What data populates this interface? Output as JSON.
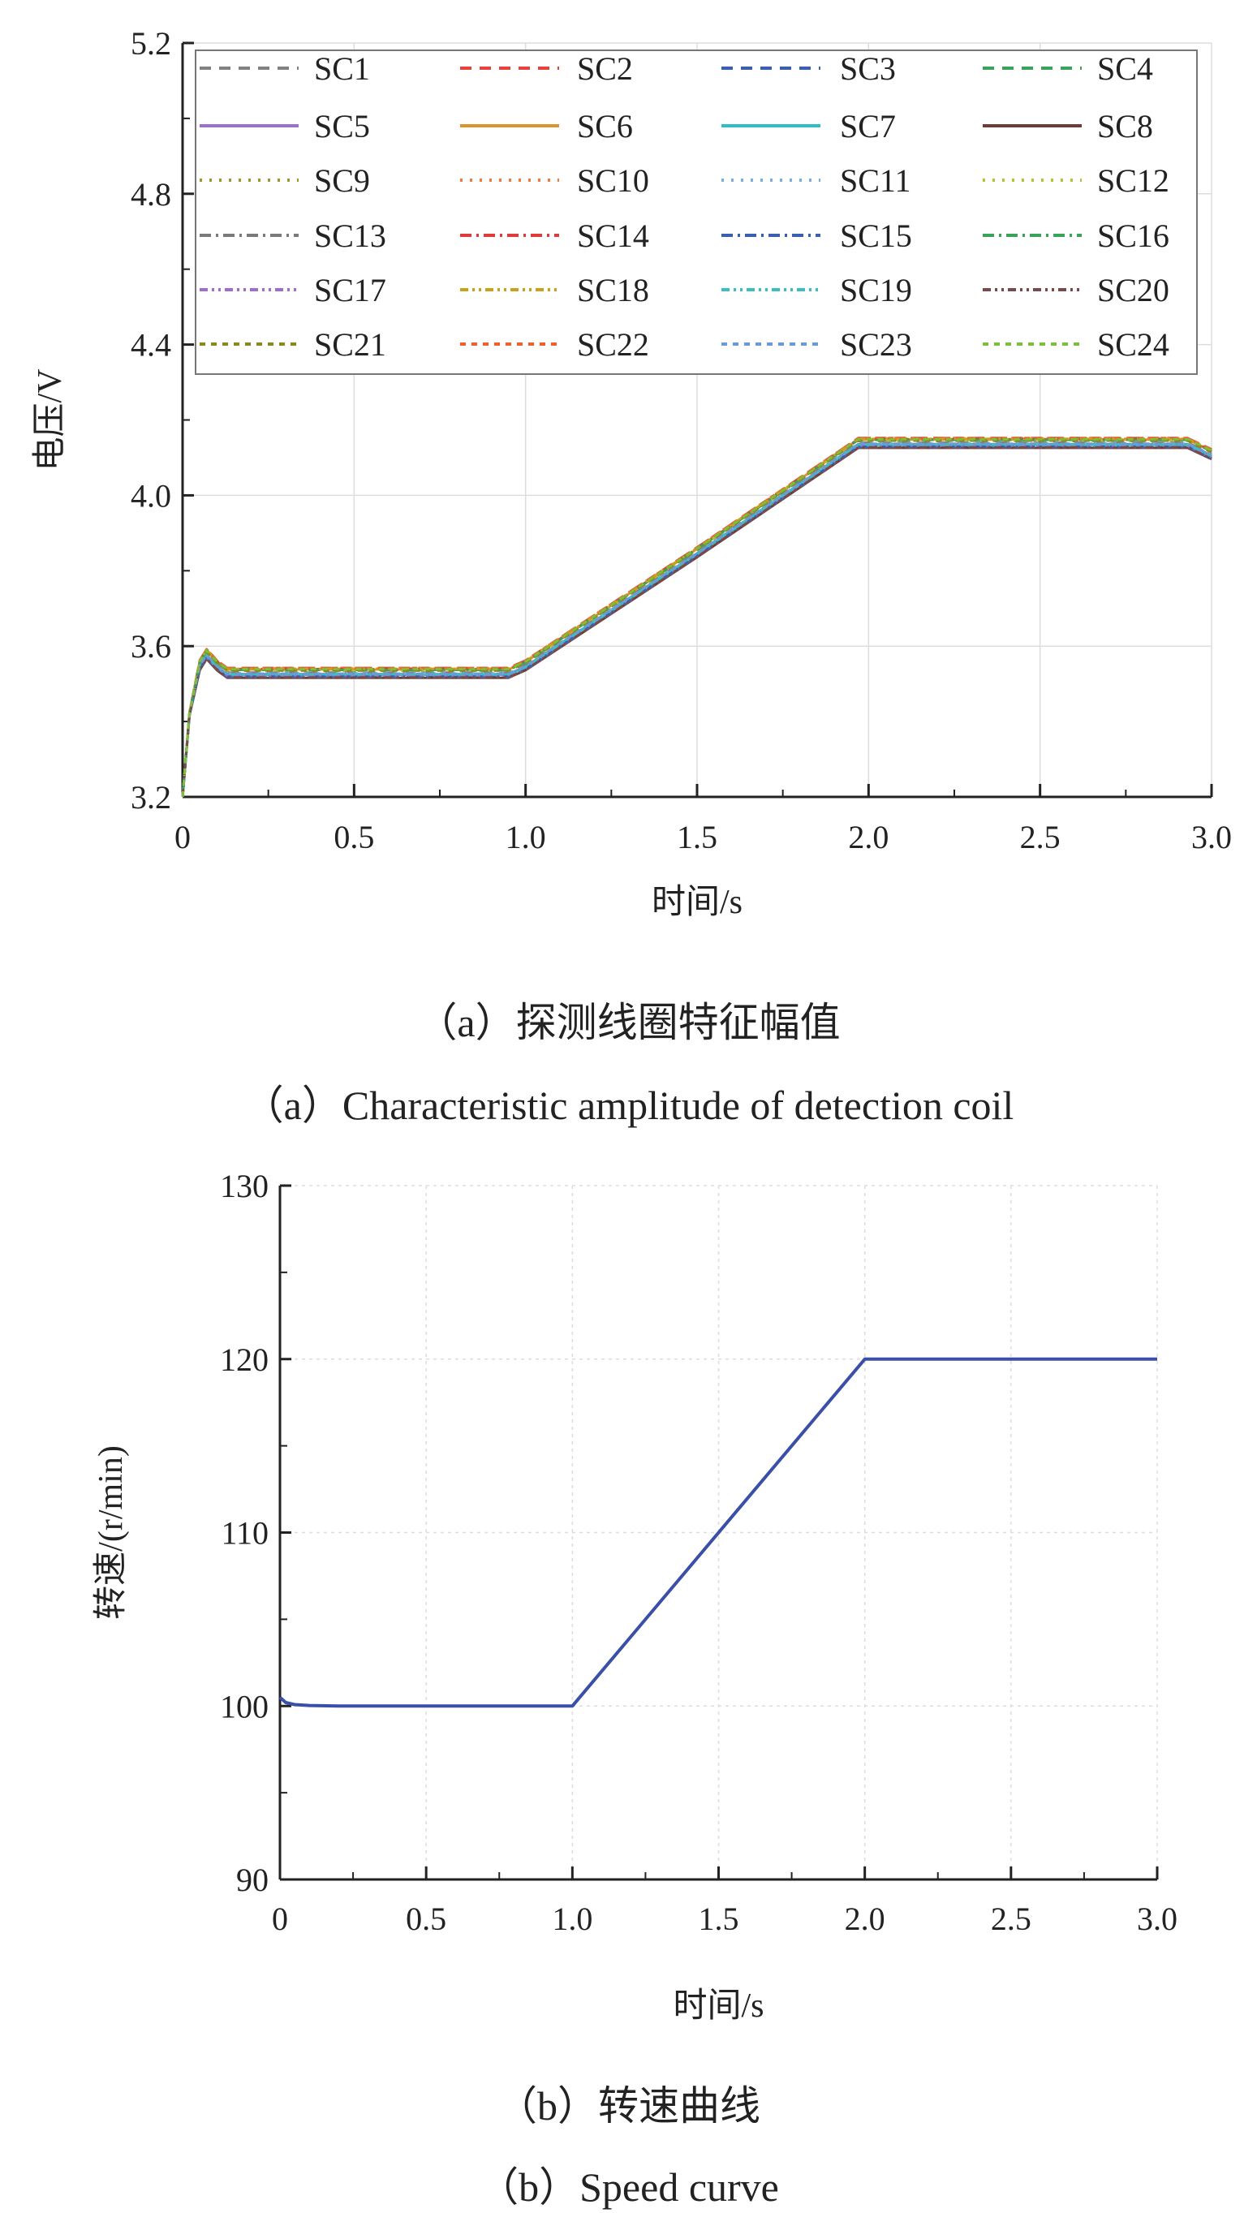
{
  "chart_data": [
    {
      "type": "line",
      "title": "",
      "xlabel": "时间/s",
      "ylabel": "电压/V",
      "xlim": [
        0,
        3.0
      ],
      "ylim": [
        3.2,
        5.2
      ],
      "xticks": [
        "0",
        "0.5",
        "1.0",
        "1.5",
        "2.0",
        "2.5",
        "3.0"
      ],
      "yticks": [
        "3.2",
        "3.6",
        "4.0",
        "4.4",
        "4.8",
        "5.2"
      ],
      "grid": true,
      "legend_position": "top",
      "x": [
        0,
        0.02,
        0.05,
        0.07,
        0.1,
        0.13,
        0.2,
        0.5,
        0.95,
        1.0,
        1.5,
        1.97,
        2.0,
        2.5,
        2.93,
        3.0
      ],
      "base_values": [
        3.2,
        3.42,
        3.55,
        3.58,
        3.55,
        3.53,
        3.53,
        3.53,
        3.53,
        3.55,
        3.85,
        4.14,
        4.14,
        4.14,
        4.14,
        4.11
      ],
      "series": [
        {
          "name": "SC1",
          "color": "#808080",
          "style": "dash",
          "offset": 0.0
        },
        {
          "name": "SC2",
          "color": "#e8413b",
          "style": "dash",
          "offset": 0.012
        },
        {
          "name": "SC3",
          "color": "#3a5fb0",
          "style": "dash",
          "offset": -0.01
        },
        {
          "name": "SC4",
          "color": "#3aa35a",
          "style": "dash",
          "offset": 0.01
        },
        {
          "name": "SC5",
          "color": "#9c6fcf",
          "style": "solid",
          "offset": -0.004
        },
        {
          "name": "SC6",
          "color": "#d9952a",
          "style": "solid",
          "offset": 0.008
        },
        {
          "name": "SC7",
          "color": "#2dbfc7",
          "style": "solid",
          "offset": -0.006
        },
        {
          "name": "SC8",
          "color": "#6e3a3a",
          "style": "solid",
          "offset": -0.014
        },
        {
          "name": "SC9",
          "color": "#9a9a2a",
          "style": "dot",
          "offset": 0.004
        },
        {
          "name": "SC10",
          "color": "#f07a3a",
          "style": "dot",
          "offset": 0.011
        },
        {
          "name": "SC11",
          "color": "#7aaee0",
          "style": "dot",
          "offset": -0.002
        },
        {
          "name": "SC12",
          "color": "#a8c83a",
          "style": "dot",
          "offset": 0.006
        },
        {
          "name": "SC13",
          "color": "#7a7a7a",
          "style": "dashdot",
          "offset": -0.012
        },
        {
          "name": "SC14",
          "color": "#e03a3a",
          "style": "dashdot",
          "offset": 0.009
        },
        {
          "name": "SC15",
          "color": "#3a5fb0",
          "style": "dashdot",
          "offset": -0.011
        },
        {
          "name": "SC16",
          "color": "#3aa35a",
          "style": "dashdot",
          "offset": 0.007
        },
        {
          "name": "SC17",
          "color": "#9c6fcf",
          "style": "dashdotdot",
          "offset": -0.008
        },
        {
          "name": "SC18",
          "color": "#c9a21a",
          "style": "dashdotdot",
          "offset": 0.01
        },
        {
          "name": "SC19",
          "color": "#3ac0c0",
          "style": "dashdotdot",
          "offset": -0.005
        },
        {
          "name": "SC20",
          "color": "#7a4a4a",
          "style": "dashdotdot",
          "offset": -0.013
        },
        {
          "name": "SC21",
          "color": "#8a8a1a",
          "style": "shortdash",
          "offset": 0.005
        },
        {
          "name": "SC22",
          "color": "#f0602a",
          "style": "shortdash",
          "offset": 0.012
        },
        {
          "name": "SC23",
          "color": "#6a9ad8",
          "style": "shortdash",
          "offset": -0.003
        },
        {
          "name": "SC24",
          "color": "#7ac03a",
          "style": "shortdash",
          "offset": 0.009
        }
      ]
    },
    {
      "type": "line",
      "title": "",
      "xlabel": "时间/s",
      "ylabel": "转速/(r/min)",
      "xlim": [
        0,
        3.0
      ],
      "ylim": [
        90,
        130
      ],
      "xticks": [
        "0",
        "0.5",
        "1.0",
        "1.5",
        "2.0",
        "2.5",
        "3.0"
      ],
      "yticks": [
        "90",
        "100",
        "110",
        "120",
        "130"
      ],
      "grid": true,
      "series": [
        {
          "name": "speed",
          "color": "#3a4fa8",
          "x": [
            0,
            0.02,
            0.05,
            0.1,
            0.2,
            1.0,
            2.0,
            3.0
          ],
          "y": [
            100.5,
            100.2,
            100.08,
            100.03,
            100,
            100,
            120,
            120
          ]
        }
      ]
    }
  ],
  "captions": {
    "a_cn": "（a）探测线圈特征幅值",
    "a_en": "（a）Characteristic amplitude of detection coil",
    "b_cn": "（b）转速曲线",
    "b_en": "（b）Speed curve"
  }
}
